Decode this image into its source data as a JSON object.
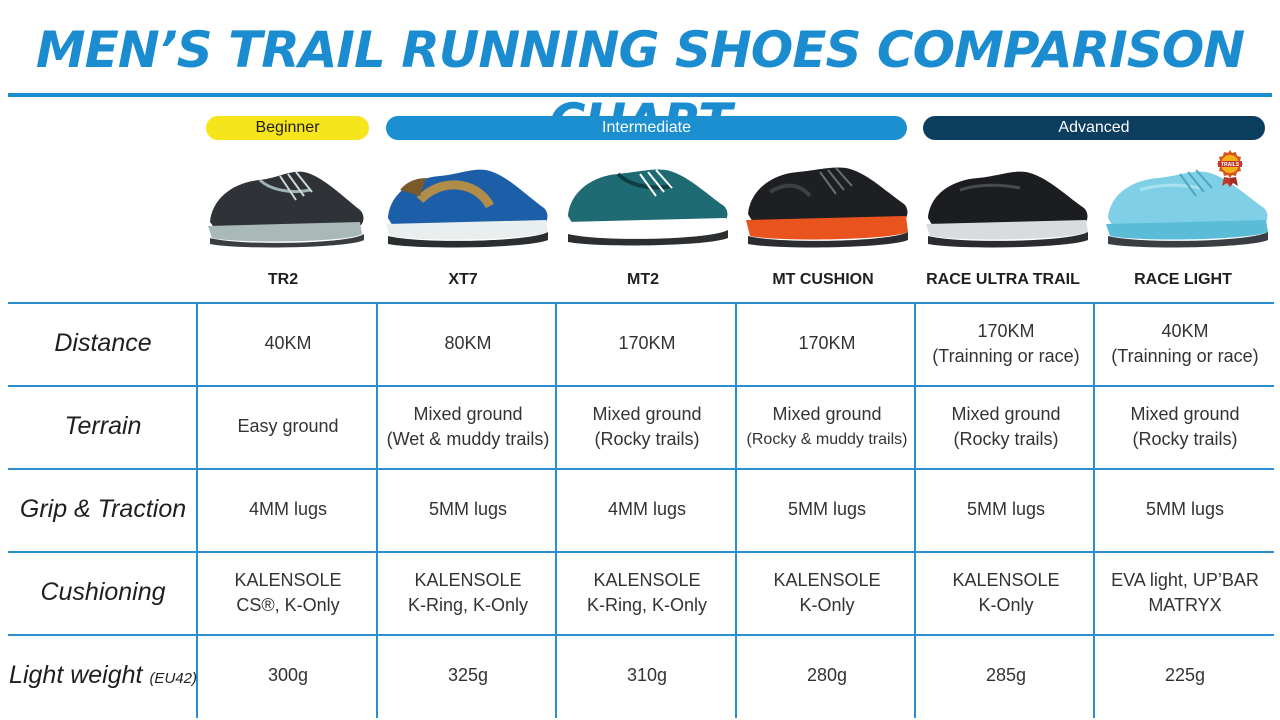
{
  "title": "MEN’S TRAIL RUNNING SHOES COMPARISON CHART",
  "levels": {
    "beginner": "Beginner",
    "intermediate": "Intermediate",
    "advanced": "Advanced"
  },
  "badge_text": "TRAILS",
  "models": [
    "TR2",
    "XT7",
    "MT2",
    "MT CUSHION",
    "RACE ULTRA TRAIL",
    "RACE LIGHT"
  ],
  "shoe_icons": [
    "tr2-shoe-icon",
    "xt7-shoe-icon",
    "mt2-shoe-icon",
    "mt-cushion-shoe-icon",
    "race-ultra-trail-shoe-icon",
    "race-light-shoe-icon"
  ],
  "colors": {
    "title": "#1a8ccf",
    "beginner": "#f6e51b",
    "intermediate": "#1b8fd0",
    "advanced": "#0c3e60",
    "grid": "#2b8fcf"
  },
  "rows": [
    {
      "label": "Distance",
      "label_sub": "",
      "cells": [
        [
          "40KM"
        ],
        [
          "80KM"
        ],
        [
          "170KM"
        ],
        [
          "170KM"
        ],
        [
          "170KM",
          "(Trainning or race)"
        ],
        [
          "40KM",
          "(Trainning or race)"
        ]
      ]
    },
    {
      "label": "Terrain",
      "label_sub": "",
      "cells": [
        [
          "Easy ground"
        ],
        [
          "Mixed ground",
          "(Wet & muddy trails)"
        ],
        [
          "Mixed ground",
          "(Rocky trails)"
        ],
        [
          "Mixed ground",
          "(Rocky & muddy trails)"
        ],
        [
          "Mixed ground",
          "(Rocky trails)"
        ],
        [
          "Mixed ground",
          "(Rocky trails)"
        ]
      ]
    },
    {
      "label": "Grip & Traction",
      "label_sub": "",
      "cells": [
        [
          "4MM lugs"
        ],
        [
          "5MM lugs"
        ],
        [
          "4MM lugs"
        ],
        [
          "5MM lugs"
        ],
        [
          "5MM lugs"
        ],
        [
          "5MM lugs"
        ]
      ]
    },
    {
      "label": "Cushioning",
      "label_sub": "",
      "cells": [
        [
          "KALENSOLE",
          "CS®, K-Only"
        ],
        [
          "KALENSOLE",
          "K-Ring, K-Only"
        ],
        [
          "KALENSOLE",
          "K-Ring, K-Only"
        ],
        [
          "KALENSOLE",
          "K-Only"
        ],
        [
          "KALENSOLE",
          "K-Only"
        ],
        [
          "EVA light, UP’BAR",
          "MATRYX"
        ]
      ]
    },
    {
      "label": "Light weight",
      "label_sub": "(EU42)",
      "cells": [
        [
          "300g"
        ],
        [
          "325g"
        ],
        [
          "310g"
        ],
        [
          "280g"
        ],
        [
          "285g"
        ],
        [
          "225g"
        ]
      ]
    }
  ]
}
